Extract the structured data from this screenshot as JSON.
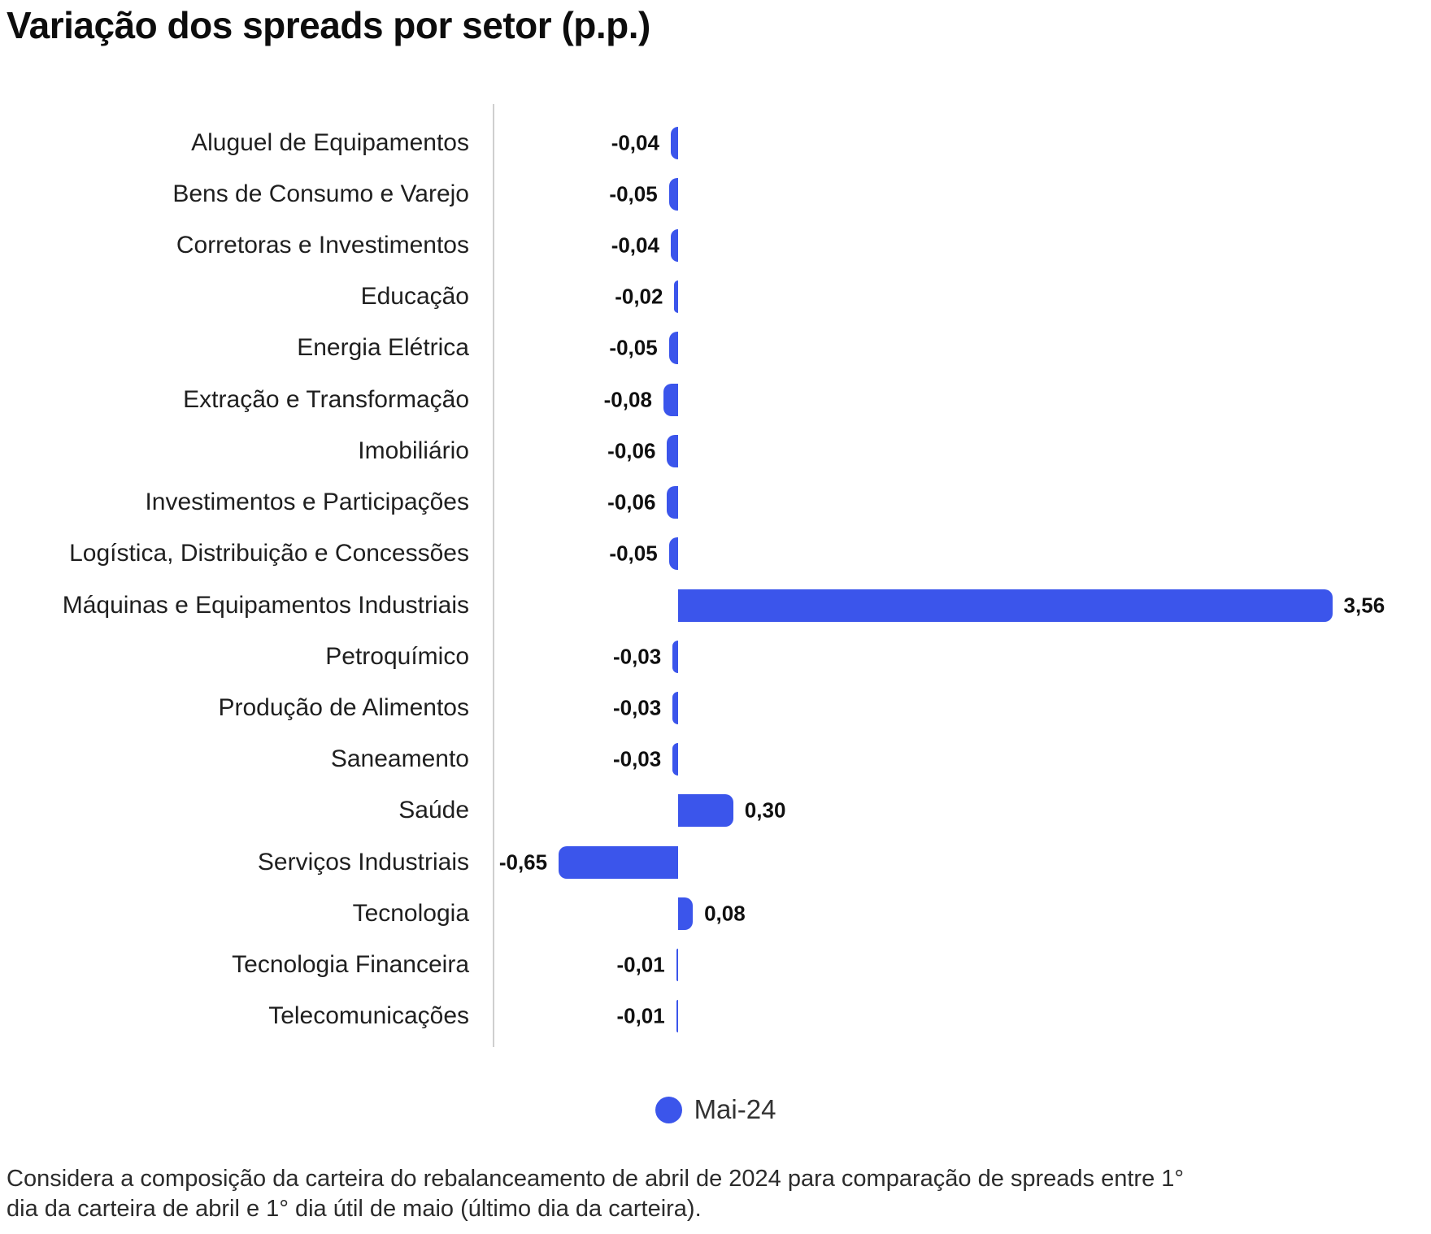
{
  "title": "Variação dos spreads por setor (p.p.)",
  "legend": {
    "label": "Mai-24"
  },
  "footnote": {
    "lines": [
      "Considera a composição da carteira do rebalanceamento de abril de 2024 para comparação de spreads entre 1°",
      "dia da carteira de abril e 1° dia útil de maio (último dia da carteira)."
    ]
  },
  "colors": {
    "bar": "#3b55eb",
    "axis": "#cfcfcf",
    "title": "#0d0d0d",
    "category_label": "#1f1f1f",
    "value_label": "#101010",
    "footnote": "#2b2b2b"
  },
  "chart_data": {
    "type": "bar",
    "orientation": "horizontal",
    "title": "Variação dos spreads por setor (p.p.)",
    "xlabel": "",
    "ylabel": "",
    "unit": "p.p.",
    "grid": false,
    "legend_position": "bottom",
    "xlim": [
      -1.0,
      4.1
    ],
    "series_name": "Mai-24",
    "categories": [
      "Aluguel de Equipamentos",
      "Bens de Consumo e Varejo",
      "Corretoras e Investimentos",
      "Educação",
      "Energia Elétrica",
      "Extração e Transformação",
      "Imobiliário",
      "Investimentos e Participações",
      "Logística, Distribuição e Concessões",
      "Máquinas e Equipamentos Industriais",
      "Petroquímico",
      "Produção de Alimentos",
      "Saneamento",
      "Saúde",
      "Serviços Industriais",
      "Tecnologia",
      "Tecnologia Financeira",
      "Telecomunicações"
    ],
    "values": [
      -0.04,
      -0.05,
      -0.04,
      -0.02,
      -0.05,
      -0.08,
      -0.06,
      -0.06,
      -0.05,
      3.56,
      -0.03,
      -0.03,
      -0.03,
      0.3,
      -0.65,
      0.08,
      -0.01,
      -0.01
    ],
    "value_labels": [
      "-0,04",
      "-0,05",
      "-0,04",
      "-0,02",
      "-0,05",
      "-0,08",
      "-0,06",
      "-0,06",
      "-0,05",
      "3,56",
      "-0,03",
      "-0,03",
      "-0,03",
      "0,30",
      "-0,65",
      "0,08",
      "-0,01",
      "-0,01"
    ]
  }
}
